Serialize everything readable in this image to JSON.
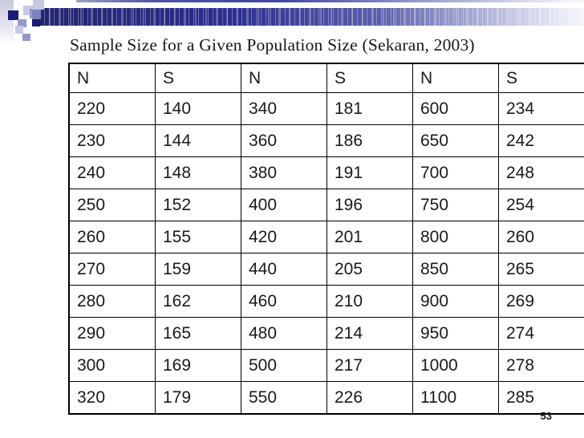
{
  "slide": {
    "title": "Sample Size for a Given Population Size (Sekaran, 2003)",
    "page_number": "53"
  },
  "table": {
    "headers": [
      "N",
      "S",
      "N",
      "S",
      "N",
      "S"
    ],
    "rows": [
      [
        "220",
        "140",
        "340",
        "181",
        "600",
        "234"
      ],
      [
        "230",
        "144",
        "360",
        "186",
        "650",
        "242"
      ],
      [
        "240",
        "148",
        "380",
        "191",
        "700",
        "248"
      ],
      [
        "250",
        "152",
        "400",
        "196",
        "750",
        "254"
      ],
      [
        "260",
        "155",
        "420",
        "201",
        "800",
        "260"
      ],
      [
        "270",
        "159",
        "440",
        "205",
        "850",
        "265"
      ],
      [
        "280",
        "162",
        "460",
        "210",
        "900",
        "269"
      ],
      [
        "290",
        "165",
        "480",
        "214",
        "950",
        "274"
      ],
      [
        "300",
        "169",
        "500",
        "217",
        "1000",
        "278"
      ],
      [
        "320",
        "179",
        "550",
        "226",
        "1100",
        "285"
      ]
    ]
  },
  "colors": {
    "bar_navy": "#2c2e8e",
    "bar_navy_dark": "#23256e",
    "accent_dark": "#1b1b78",
    "accent_medium": "#9399c8",
    "accent_medium2": "#7d83bd",
    "accent_light": "#c6c9e4",
    "title_text": "#16161e",
    "table_border": "#000000",
    "cell_text": "#1a1a1a",
    "page_number_color": "#16161e"
  }
}
